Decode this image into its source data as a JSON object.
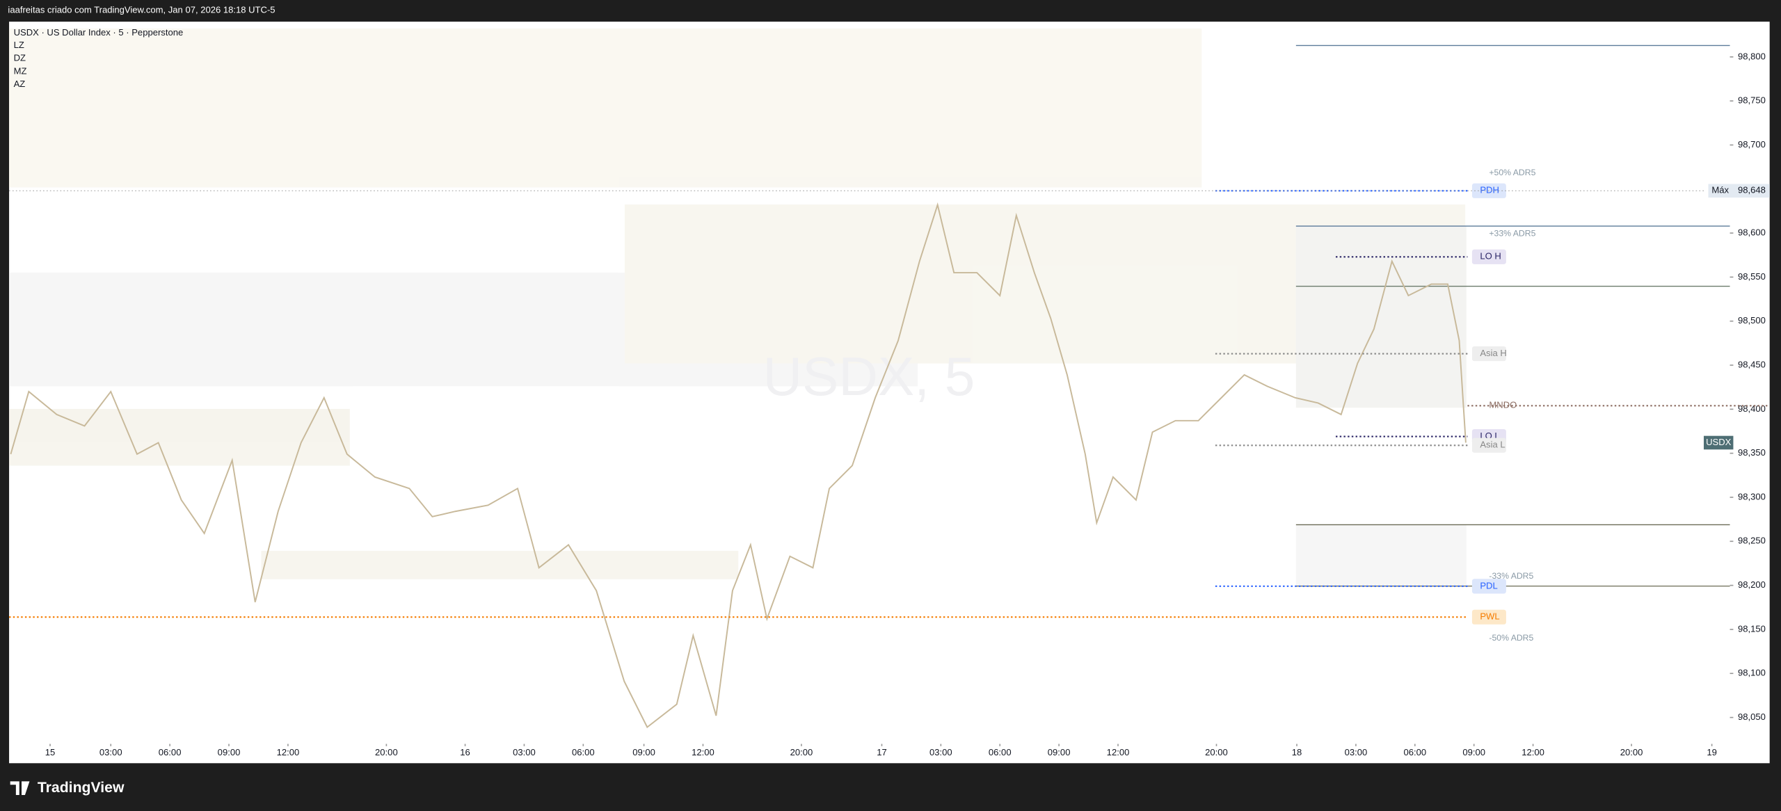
{
  "header": {
    "caption": "iaafreitas criado com TradingView.com, Jan 07, 2026 18:18 UTC-5"
  },
  "footer": {
    "brand": "TradingView"
  },
  "chart_data": {
    "type": "line",
    "title": "USDX · US Dollar Index · 5 · Pepperstone",
    "watermark": "USDX, 5",
    "legend_items": [
      "LZ",
      "DZ",
      "MZ",
      "AZ"
    ],
    "x": [
      -24,
      -13,
      4,
      21,
      37,
      53,
      66,
      80,
      94,
      111,
      125,
      139,
      153,
      167,
      181,
      198,
      219,
      233,
      247,
      267,
      285,
      298,
      316,
      333,
      350,
      364,
      382,
      392,
      406,
      416,
      427,
      437,
      451,
      465,
      475,
      489,
      503,
      517,
      530,
      541,
      551,
      565,
      579,
      589,
      600,
      610,
      620,
      631,
      638,
      648,
      662,
      672,
      686,
      700,
      714,
      728,
      742,
      759,
      773,
      787,
      797,
      807,
      818,
      828,
      842,
      852,
      859,
      863
    ],
    "series": [
      {
        "name": "USDX",
        "color": "#c8b99a",
        "values": [
          98349,
          98420,
          98394,
          98381,
          98420,
          98349,
          98362,
          98297,
          98259,
          98342,
          98181,
          98284,
          98362,
          98413,
          98349,
          98323,
          98310,
          98278,
          98284,
          98291,
          98310,
          98220,
          98246,
          98194,
          98091,
          98039,
          98065,
          98143,
          98052,
          98194,
          98246,
          98162,
          98233,
          98220,
          98310,
          98336,
          98413,
          98478,
          98568,
          98632,
          98555,
          98555,
          98529,
          98620,
          98555,
          98503,
          98439,
          98349,
          98271,
          98323,
          98297,
          98374,
          98387,
          98387,
          98413,
          98439,
          98426,
          98413,
          98407,
          98394,
          98452,
          98491,
          98568,
          98529,
          98542,
          98542,
          98478,
          98362
        ]
      }
    ],
    "xlim": [
      -25,
      1024
    ],
    "xticks": [
      {
        "value": 0,
        "label": "15"
      },
      {
        "value": 37,
        "label": "03:00"
      },
      {
        "value": 73,
        "label": "06:00"
      },
      {
        "value": 109,
        "label": "09:00"
      },
      {
        "value": 145,
        "label": "12:00"
      },
      {
        "value": 205,
        "label": "20:00"
      },
      {
        "value": 253,
        "label": "16"
      },
      {
        "value": 289,
        "label": "03:00"
      },
      {
        "value": 325,
        "label": "06:00"
      },
      {
        "value": 362,
        "label": "09:00"
      },
      {
        "value": 398,
        "label": "12:00"
      },
      {
        "value": 458,
        "label": "20:00"
      },
      {
        "value": 507,
        "label": "17"
      },
      {
        "value": 543,
        "label": "03:00"
      },
      {
        "value": 579,
        "label": "06:00"
      },
      {
        "value": 615,
        "label": "09:00"
      },
      {
        "value": 651,
        "label": "12:00"
      },
      {
        "value": 711,
        "label": "20:00"
      },
      {
        "value": 760,
        "label": "18"
      },
      {
        "value": 796,
        "label": "03:00"
      },
      {
        "value": 832,
        "label": "06:00"
      },
      {
        "value": 868,
        "label": "09:00"
      },
      {
        "value": 904,
        "label": "12:00"
      },
      {
        "value": 964,
        "label": "20:00"
      },
      {
        "value": 1013,
        "label": "19"
      }
    ],
    "ylim": [
      98020,
      98840
    ],
    "yticks": [
      {
        "value": 98050,
        "label": "98,050"
      },
      {
        "value": 98100,
        "label": "98,100"
      },
      {
        "value": 98150,
        "label": "98,150"
      },
      {
        "value": 98200,
        "label": "98,200"
      },
      {
        "value": 98250,
        "label": "98,250"
      },
      {
        "value": 98300,
        "label": "98,300"
      },
      {
        "value": 98350,
        "label": "98,350"
      },
      {
        "value": 98400,
        "label": "98,400"
      },
      {
        "value": 98450,
        "label": "98,450"
      },
      {
        "value": 98500,
        "label": "98,500"
      },
      {
        "value": 98550,
        "label": "98,550"
      },
      {
        "value": 98600,
        "label": "98,600"
      },
      {
        "value": 98650,
        "label": "98,650"
      },
      {
        "value": 98700,
        "label": "98,700"
      },
      {
        "value": 98750,
        "label": "98,750"
      },
      {
        "value": 98800,
        "label": "98,800"
      }
    ],
    "levels": [
      {
        "name": "PDH",
        "value": 98648,
        "color": "#2962ff"
      },
      {
        "name": "LO H",
        "value": 98573,
        "color": "#2a2466"
      },
      {
        "name": "Asia H",
        "value": 98463,
        "color": "#888888"
      },
      {
        "name": "MNDO",
        "value": 98404,
        "color": "#8d6e63"
      },
      {
        "name": "LO L",
        "value": 98369,
        "color": "#2a2466"
      },
      {
        "name": "Asia L",
        "value": 98359,
        "color": "#888888"
      },
      {
        "name": "PDL",
        "value": 98199,
        "color": "#2962ff"
      },
      {
        "name": "PWL",
        "value": 98164,
        "color": "#f57c00"
      }
    ],
    "adr_labels": [
      {
        "label": "+50% ADR5",
        "value": 98668
      },
      {
        "label": "+33% ADR5",
        "value": 98599
      },
      {
        "label": "-33% ADR5",
        "value": 98210
      },
      {
        "label": "-50% ADR5",
        "value": 98140
      }
    ],
    "max_marker": {
      "label": "Máx",
      "value": 98648,
      "value_label": "98,648"
    }
  }
}
